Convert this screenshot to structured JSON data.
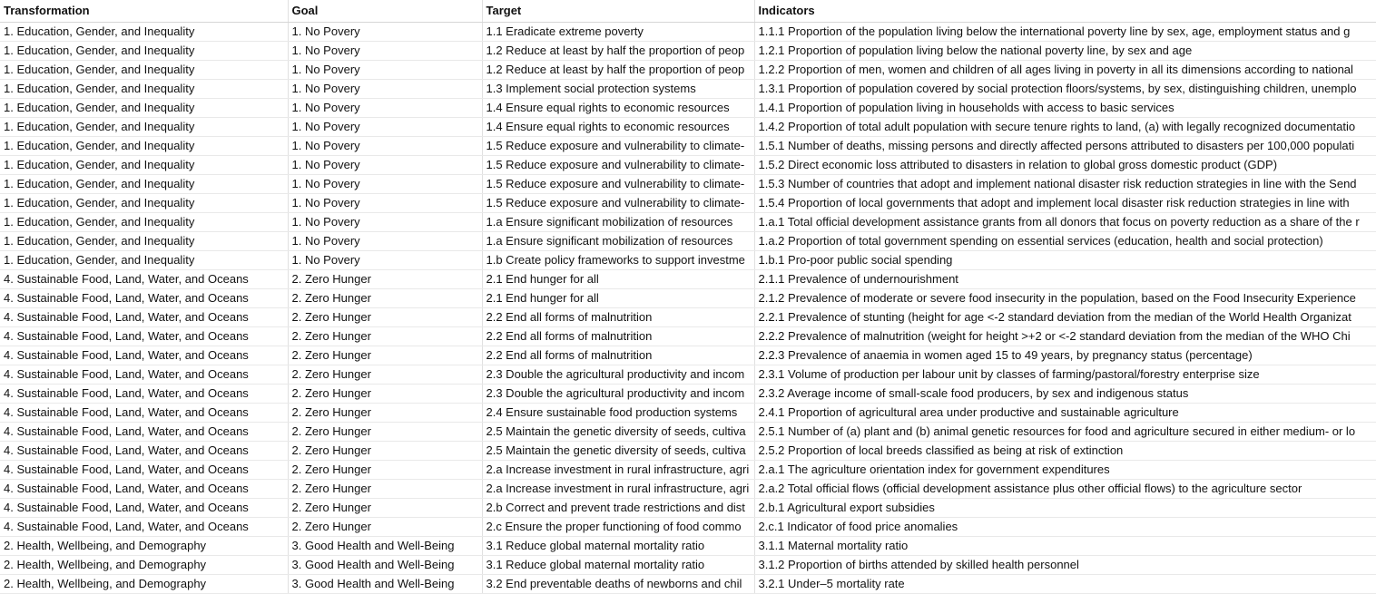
{
  "columns": [
    "Transformation",
    "Goal",
    "Target",
    "Indicators"
  ],
  "rows": [
    [
      "1. Education, Gender, and Inequality",
      "1. No Povery",
      "1.1 Eradicate extreme poverty",
      "1.1.1 Proportion of the population living below the international poverty line by sex, age, employment status and g"
    ],
    [
      "1. Education, Gender, and Inequality",
      "1. No Povery",
      "1.2 Reduce at least by half the proportion of peop",
      "1.2.1 Proportion of population living below the national poverty line, by sex and age"
    ],
    [
      "1. Education, Gender, and Inequality",
      "1. No Povery",
      "1.2 Reduce at least by half the proportion of peop",
      "1.2.2 Proportion of men, women and children of all ages living in poverty in all its dimensions according to national"
    ],
    [
      "1. Education, Gender, and Inequality",
      "1. No Povery",
      "1.3 Implement social protection systems",
      "1.3.1 Proportion of population covered by social protection floors/systems, by sex, distinguishing children, unemplo"
    ],
    [
      "1. Education, Gender, and Inequality",
      "1. No Povery",
      "1.4 Ensure equal rights to economic resources",
      "1.4.1 Proportion of population living in households with access to basic services"
    ],
    [
      "1. Education, Gender, and Inequality",
      "1. No Povery",
      "1.4 Ensure equal rights to economic resources",
      "1.4.2 Proportion of total adult population with secure tenure rights to land, (a) with legally recognized documentatio"
    ],
    [
      "1. Education, Gender, and Inequality",
      "1. No Povery",
      "1.5 Reduce exposure and vulnerability to climate-",
      "1.5.1 Number of deaths, missing persons and directly affected persons attributed to disasters per 100,000 populati"
    ],
    [
      "1. Education, Gender, and Inequality",
      "1. No Povery",
      "1.5 Reduce exposure and vulnerability to climate-",
      "1.5.2 Direct economic loss attributed to disasters in relation to global gross domestic product (GDP)"
    ],
    [
      "1. Education, Gender, and Inequality",
      "1. No Povery",
      "1.5 Reduce exposure and vulnerability to climate-",
      "1.5.3 Number of countries that adopt and implement national disaster risk reduction strategies in line with the Send"
    ],
    [
      "1. Education, Gender, and Inequality",
      "1. No Povery",
      "1.5 Reduce exposure and vulnerability to climate-",
      "1.5.4 Proportion of local governments that adopt and implement local disaster risk reduction strategies in line with"
    ],
    [
      "1. Education, Gender, and Inequality",
      "1. No Povery",
      "1.a Ensure significant mobilization of resources",
      "1.a.1 Total official development assistance grants from all donors that focus on poverty reduction as a share of the r"
    ],
    [
      "1. Education, Gender, and Inequality",
      "1. No Povery",
      "1.a Ensure significant mobilization of resources",
      "1.a.2 Proportion of total government spending on essential services (education, health and social protection)"
    ],
    [
      "1. Education, Gender, and Inequality",
      "1. No Povery",
      "1.b Create policy frameworks to support investme",
      "1.b.1 Pro-poor public social spending"
    ],
    [
      "4. Sustainable Food, Land, Water, and Oceans",
      "2. Zero Hunger",
      "2.1 End hunger for all",
      "2.1.1 Prevalence of undernourishment"
    ],
    [
      "4. Sustainable Food, Land, Water, and Oceans",
      "2. Zero Hunger",
      "2.1 End hunger for all",
      "2.1.2 Prevalence of moderate or severe food insecurity in the population, based on the Food Insecurity Experience"
    ],
    [
      "4. Sustainable Food, Land, Water, and Oceans",
      "2. Zero Hunger",
      "2.2 End all forms of malnutrition",
      "2.2.1 Prevalence of stunting (height for age <-2 standard deviation from the median of the World Health Organizat"
    ],
    [
      "4. Sustainable Food, Land, Water, and Oceans",
      "2. Zero Hunger",
      "2.2 End all forms of malnutrition",
      "2.2.2 Prevalence of malnutrition (weight for height >+2 or <-2 standard deviation from the median of the WHO Chi"
    ],
    [
      "4. Sustainable Food, Land, Water, and Oceans",
      "2. Zero Hunger",
      "2.2 End all forms of malnutrition",
      "2.2.3 Prevalence of anaemia in women aged 15 to 49 years, by pregnancy status (percentage)"
    ],
    [
      "4. Sustainable Food, Land, Water, and Oceans",
      "2. Zero Hunger",
      "2.3 Double the agricultural productivity and incom",
      "2.3.1 Volume of production per labour unit by classes of farming/pastoral/forestry enterprise size"
    ],
    [
      "4. Sustainable Food, Land, Water, and Oceans",
      "2. Zero Hunger",
      "2.3 Double the agricultural productivity and incom",
      "2.3.2 Average income of small-scale food producers, by sex and indigenous status"
    ],
    [
      "4. Sustainable Food, Land, Water, and Oceans",
      "2. Zero Hunger",
      "2.4 Ensure sustainable food production systems",
      "2.4.1 Proportion of agricultural area under productive and sustainable agriculture"
    ],
    [
      "4. Sustainable Food, Land, Water, and Oceans",
      "2. Zero Hunger",
      "2.5 Maintain the genetic diversity of seeds, cultiva",
      "2.5.1 Number of (a) plant and (b) animal genetic resources for food and agriculture secured in either medium- or lo"
    ],
    [
      "4. Sustainable Food, Land, Water, and Oceans",
      "2. Zero Hunger",
      "2.5 Maintain the genetic diversity of seeds, cultiva",
      "2.5.2 Proportion of local breeds classified as being at risk of extinction"
    ],
    [
      "4. Sustainable Food, Land, Water, and Oceans",
      "2. Zero Hunger",
      "2.a Increase investment in rural infrastructure, agri",
      "2.a.1 The agriculture orientation index for government expenditures"
    ],
    [
      "4. Sustainable Food, Land, Water, and Oceans",
      "2. Zero Hunger",
      "2.a Increase investment in rural infrastructure, agri",
      "2.a.2 Total official flows (official development assistance plus other official flows) to the agriculture sector"
    ],
    [
      "4. Sustainable Food, Land, Water, and Oceans",
      "2. Zero Hunger",
      "2.b Correct and prevent trade restrictions and dist",
      "2.b.1 Agricultural export subsidies"
    ],
    [
      "4. Sustainable Food, Land, Water, and Oceans",
      "2. Zero Hunger",
      "2.c Ensure the proper functioning of food commo",
      "2.c.1 Indicator of food price anomalies"
    ],
    [
      "2. Health, Wellbeing, and Demography",
      "3. Good Health and Well-Being",
      "3.1 Reduce global maternal mortality ratio",
      "3.1.1 Maternal mortality ratio"
    ],
    [
      "2. Health, Wellbeing, and Demography",
      "3. Good Health and Well-Being",
      "3.1 Reduce global maternal mortality ratio",
      "3.1.2 Proportion of births attended by skilled health personnel"
    ],
    [
      "2. Health, Wellbeing, and Demography",
      "3. Good Health and Well-Being",
      "3.2 End preventable deaths of newborns and chil",
      "3.2.1 Under–5 mortality rate"
    ]
  ]
}
